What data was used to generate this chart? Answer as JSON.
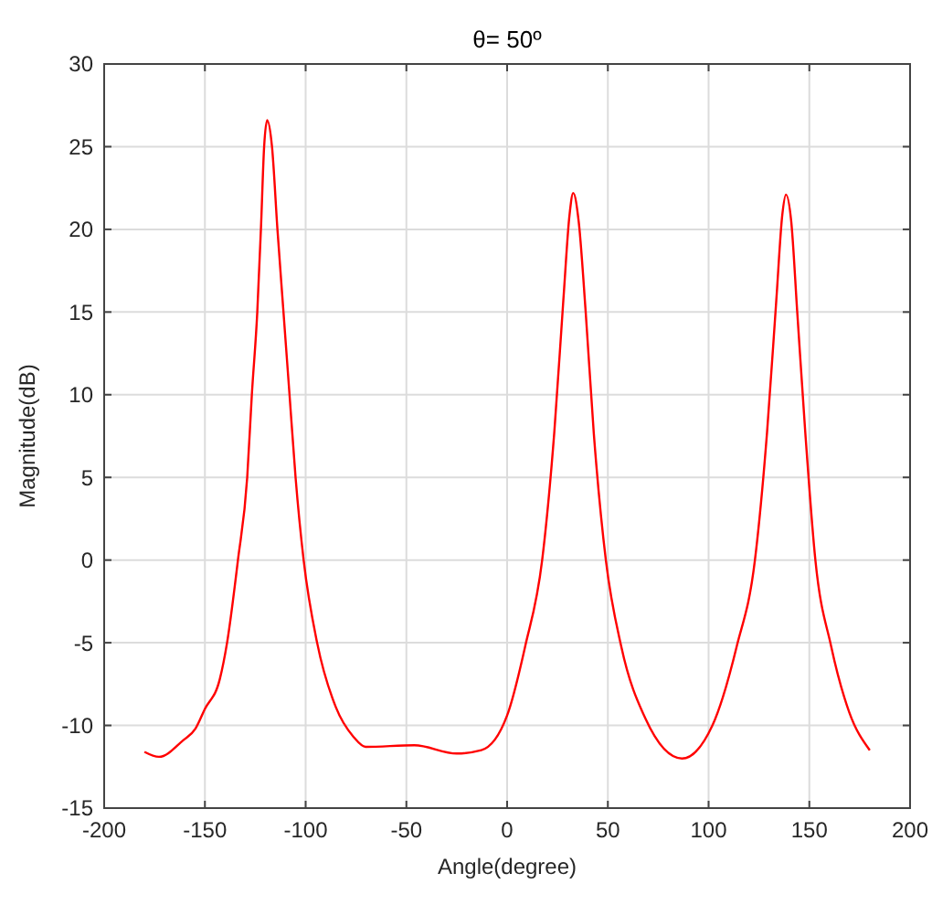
{
  "chart_data": {
    "type": "line",
    "title": "θ= 50º",
    "xlabel": "Angle(degree)",
    "ylabel": "Magnitude(dB)",
    "xlim": [
      -200,
      200
    ],
    "xticks": [
      -200,
      -150,
      -100,
      -50,
      0,
      50,
      100,
      150,
      200
    ],
    "ylim": [
      -15,
      30
    ],
    "yticks": [
      -15,
      -10,
      -5,
      0,
      5,
      10,
      15,
      20,
      25,
      30
    ],
    "grid": true,
    "marker": "none",
    "line_style": "solid",
    "series": [
      {
        "color": "#ff0000",
        "x": [
          -180,
          -172.8,
          -160.8,
          -154.7,
          -150,
          -142.6,
          -139,
          -133.6,
          -129,
          -126.7,
          -124,
          -122.2,
          -120.6,
          -119.1,
          -116.7,
          -114,
          -111,
          -108,
          -105,
          -101,
          -94.3,
          -85,
          -76.2,
          -70.2,
          -46,
          -25,
          -12.8,
          0,
          9,
          17.4,
          23.4,
          27.9,
          31,
          32.8,
          35.5,
          39,
          43,
          49,
          56.6,
          68.7,
          86.8,
          101.9,
          114,
          123,
          129,
          133.6,
          136.6,
          138.4,
          141,
          144,
          148,
          153,
          160.8,
          169.8,
          180
        ],
        "values": [
          -11.6,
          -11.9,
          -10.9,
          -10.2,
          -9,
          -7.2,
          -5,
          0,
          5,
          10,
          15,
          20,
          25,
          26.6,
          25,
          20,
          15,
          10,
          5,
          0,
          -5,
          -8.9,
          -10.7,
          -11.3,
          -11.2,
          -11.7,
          -11.5,
          -9.4,
          -5.2,
          0,
          7.7,
          15.7,
          20.9,
          22.2,
          20.5,
          15,
          7.7,
          0,
          -5.2,
          -9.6,
          -12,
          -10,
          -5.2,
          0,
          7.7,
          15.7,
          20.9,
          22.1,
          20.5,
          15,
          7.7,
          0,
          -5.2,
          -9.2,
          -11.5
        ]
      }
    ]
  }
}
